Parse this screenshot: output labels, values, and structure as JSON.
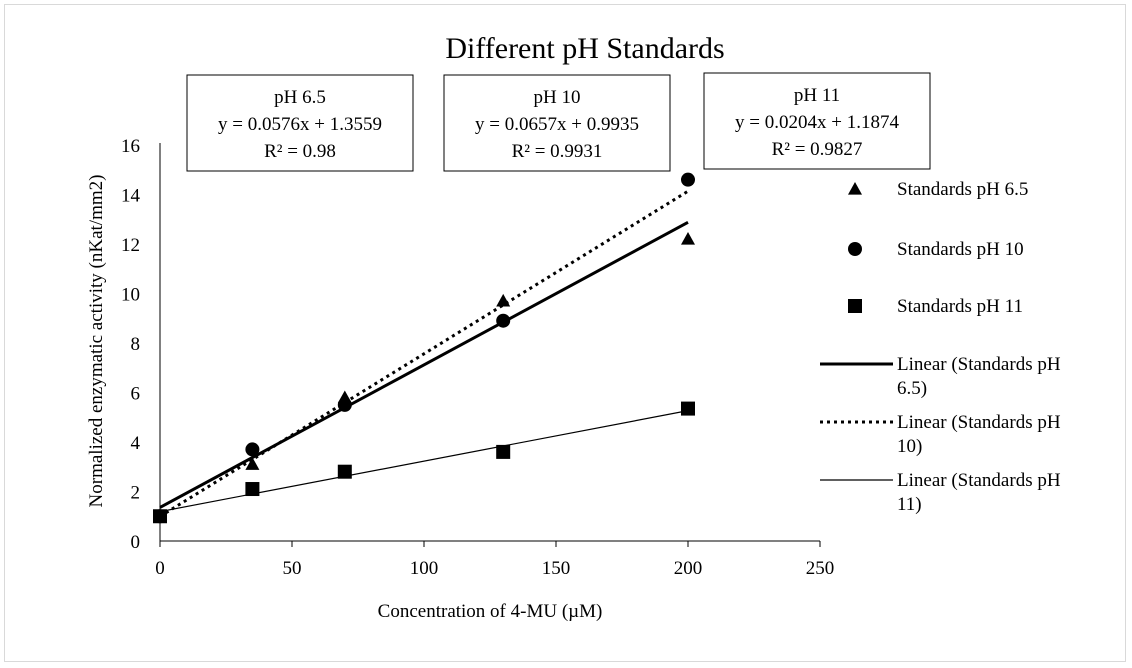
{
  "chart_data": {
    "type": "scatter",
    "title": "Different pH Standards",
    "xlabel": "Concentration of 4-MU (µM)",
    "ylabel": "Normalized enzymatic activity (nKat/mm2)",
    "xlim": [
      0,
      250
    ],
    "ylim": [
      0,
      16
    ],
    "x_ticks": [
      0,
      50,
      100,
      150,
      200,
      250
    ],
    "y_ticks": [
      0,
      2,
      4,
      6,
      8,
      10,
      12,
      14,
      16
    ],
    "grid": false,
    "legend_position": "right",
    "series": [
      {
        "name": "Standards pH 6.5",
        "marker": "triangle",
        "color": "#000000",
        "x": [
          0,
          35,
          70,
          130,
          200
        ],
        "y": [
          1.0,
          3.1,
          5.8,
          9.7,
          12.2
        ],
        "trendline": {
          "name": "Linear (Standards pH 6.5)",
          "style": "solid-thick",
          "slope": 0.0576,
          "intercept": 1.3559,
          "x_range": [
            0,
            200
          ],
          "equation": "y = 0.0576x + 1.3559",
          "r2": "R² = 0.98",
          "label": "pH 6.5"
        }
      },
      {
        "name": "Standards pH 10",
        "marker": "circle",
        "color": "#000000",
        "x": [
          0,
          35,
          70,
          130,
          200
        ],
        "y": [
          1.0,
          3.7,
          5.5,
          8.9,
          14.6
        ],
        "trendline": {
          "name": "Linear (Standards pH 10)",
          "style": "dotted",
          "slope": 0.0657,
          "intercept": 0.9935,
          "x_range": [
            0,
            200
          ],
          "equation": "y = 0.0657x + 0.9935",
          "r2": "R² = 0.9931",
          "label": "pH 10"
        }
      },
      {
        "name": "Standards pH 11",
        "marker": "square",
        "color": "#000000",
        "x": [
          0,
          35,
          70,
          130,
          200
        ],
        "y": [
          1.0,
          2.1,
          2.8,
          3.6,
          5.35
        ],
        "trendline": {
          "name": "Linear (Standards pH 11)",
          "style": "solid-thin",
          "slope": 0.0204,
          "intercept": 1.1874,
          "x_range": [
            0,
            200
          ],
          "equation": "y = 0.0204x + 1.1874",
          "r2": "R² = 0.9827",
          "label": "pH 11"
        }
      }
    ],
    "legend_items": [
      {
        "marker": "triangle",
        "lines": [
          "Standards pH 6.5"
        ]
      },
      {
        "marker": "circle",
        "lines": [
          "Standards pH 10"
        ]
      },
      {
        "marker": "square",
        "lines": [
          "Standards pH 11"
        ]
      },
      {
        "marker": "line-thick",
        "lines": [
          "Linear (Standards pH",
          "6.5)"
        ]
      },
      {
        "marker": "line-dotted",
        "lines": [
          "Linear (Standards pH",
          "10)"
        ]
      },
      {
        "marker": "line-thin",
        "lines": [
          "Linear (Standards pH",
          "11)"
        ]
      }
    ]
  }
}
